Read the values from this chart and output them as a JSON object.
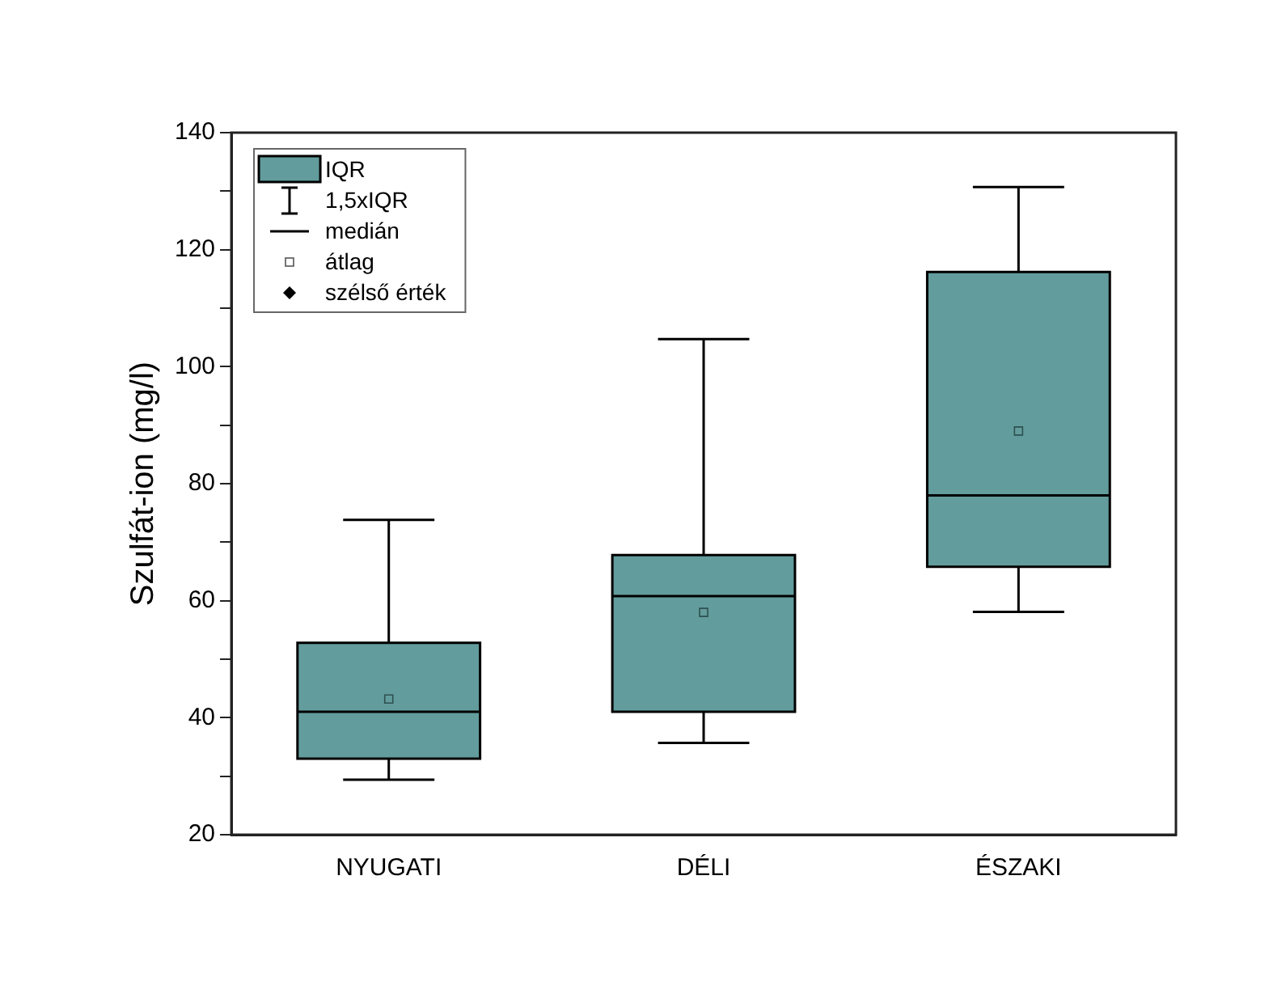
{
  "chart_data": {
    "type": "box",
    "ylabel": "Szulfát-ion (mg/l)",
    "categories": [
      "NYUGATI",
      "DÉLI",
      "ÉSZAKI"
    ],
    "series": [
      {
        "name": "IQR",
        "color": "#639c9c",
        "boxes": [
          {
            "low": 29.4,
            "q1": 33,
            "median": 41,
            "q3": 52.8,
            "high": 73.8,
            "mean": 43.2
          },
          {
            "low": 35.7,
            "q1": 41,
            "median": 60.8,
            "q3": 67.8,
            "high": 104.7,
            "mean": 58
          },
          {
            "low": 58.1,
            "q1": 65.8,
            "median": 78,
            "q3": 116.2,
            "high": 130.7,
            "mean": 89
          }
        ]
      }
    ],
    "annotations": [
      "1,5xIQR",
      "medián",
      "átlag",
      "szélső érték"
    ],
    "ylim": [
      20,
      140
    ],
    "yticks": [
      20,
      {
        "value": 30,
        "label": null
      },
      40,
      {
        "value": 50,
        "label": null
      },
      60,
      {
        "value": 70,
        "label": null
      },
      80,
      {
        "value": 90,
        "label": null
      },
      100,
      {
        "value": 110,
        "label": null
      },
      120,
      {
        "value": 130,
        "label": null
      },
      140
    ],
    "grid": false,
    "legend": "top left",
    "marker": "square"
  }
}
